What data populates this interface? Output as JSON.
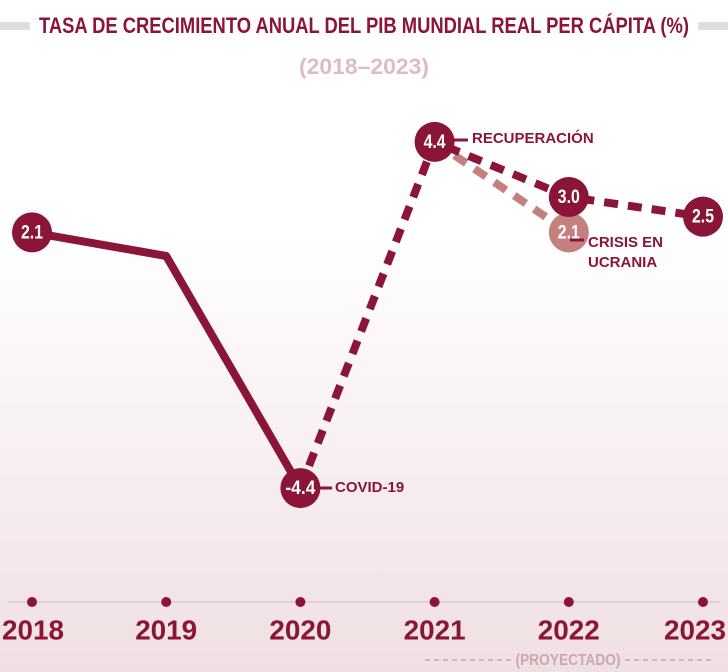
{
  "chart_data": {
    "type": "line",
    "title": "TASA DE CRECIMIENTO ANUAL DEL PIB MUNDIAL REAL PER CÁPITA (%)",
    "subtitle": "(2018–2023)",
    "categories": [
      "2018",
      "2019",
      "2020",
      "2021",
      "2022",
      "2023"
    ],
    "ylim": [
      -6,
      6
    ],
    "series": [
      {
        "color": "#8b1538",
        "dashed": false,
        "values": [
          2.1,
          1.5,
          -4.4,
          null,
          null,
          null
        ],
        "value_labels": [
          "2.1",
          null,
          "-4.4",
          null,
          null,
          null
        ]
      },
      {
        "color": "#8b1538",
        "dashed": true,
        "values": [
          null,
          null,
          -4.4,
          4.4,
          3.0,
          2.5
        ],
        "value_labels": [
          null,
          null,
          null,
          "4.4",
          "3.0",
          "2.5"
        ]
      },
      {
        "color": "#c4807f",
        "dashed": true,
        "values": [
          null,
          null,
          null,
          4.4,
          2.1,
          null
        ],
        "value_labels": [
          null,
          null,
          null,
          null,
          "2.1",
          null
        ]
      }
    ],
    "annotations": [
      "COVID-19",
      "RECUPERACIÓN",
      "CRISIS EN UCRANIA"
    ],
    "footnote": "(PROYECTADO)"
  }
}
